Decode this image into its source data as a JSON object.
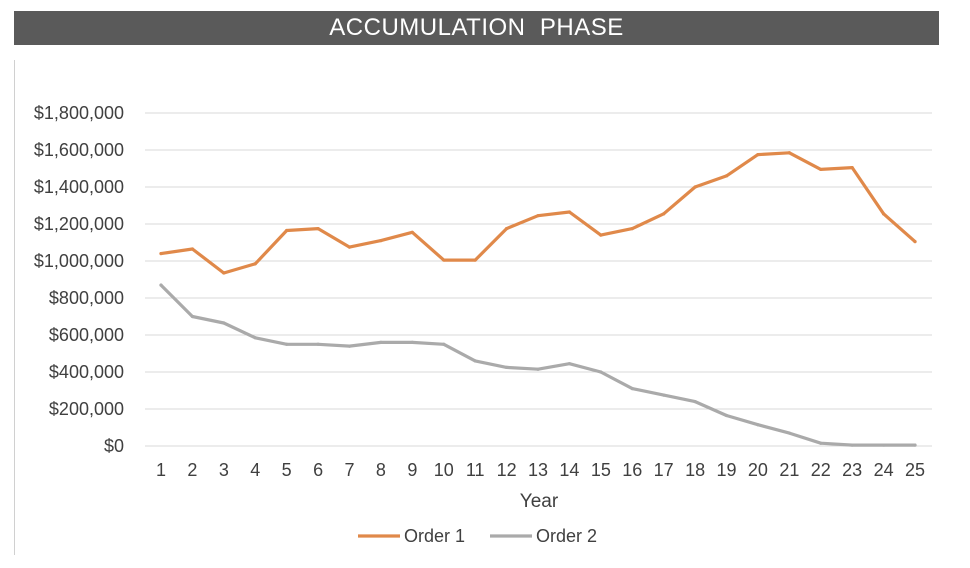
{
  "header": {
    "title": "ACCUMULATION  PHASE"
  },
  "colors": {
    "banner": "#5a5a5a",
    "order1": "#e0894a",
    "order2": "#aaaaaa",
    "grid": "#d9d9d9"
  },
  "chart_data": {
    "type": "line",
    "title": "ACCUMULATION  PHASE",
    "xlabel": "Year",
    "ylabel": "",
    "x": [
      1,
      2,
      3,
      4,
      5,
      6,
      7,
      8,
      9,
      10,
      11,
      12,
      13,
      14,
      15,
      16,
      17,
      18,
      19,
      20,
      21,
      22,
      23,
      24,
      25
    ],
    "ylim": [
      0,
      1800000
    ],
    "yticks": [
      0,
      200000,
      400000,
      600000,
      800000,
      1000000,
      1200000,
      1400000,
      1600000,
      1800000
    ],
    "ytick_labels": [
      "$0",
      "$200,000",
      "$400,000",
      "$600,000",
      "$800,000",
      "$1,000,000",
      "$1,200,000",
      "$1,400,000",
      "$1,600,000",
      "$1,800,000"
    ],
    "grid": true,
    "legend": "bottom",
    "series": [
      {
        "name": "Order 1",
        "color": "#e0894a",
        "values": [
          1040000,
          1065000,
          935000,
          985000,
          1165000,
          1175000,
          1075000,
          1110000,
          1155000,
          1005000,
          1005000,
          1175000,
          1245000,
          1265000,
          1140000,
          1175000,
          1255000,
          1400000,
          1460000,
          1575000,
          1585000,
          1495000,
          1505000,
          1255000,
          1105000
        ]
      },
      {
        "name": "Order 2",
        "color": "#aaaaaa",
        "values": [
          870000,
          700000,
          665000,
          585000,
          550000,
          550000,
          540000,
          560000,
          560000,
          550000,
          460000,
          425000,
          415000,
          445000,
          400000,
          310000,
          275000,
          240000,
          165000,
          115000,
          70000,
          15000,
          5000,
          5000,
          5000
        ]
      }
    ]
  }
}
